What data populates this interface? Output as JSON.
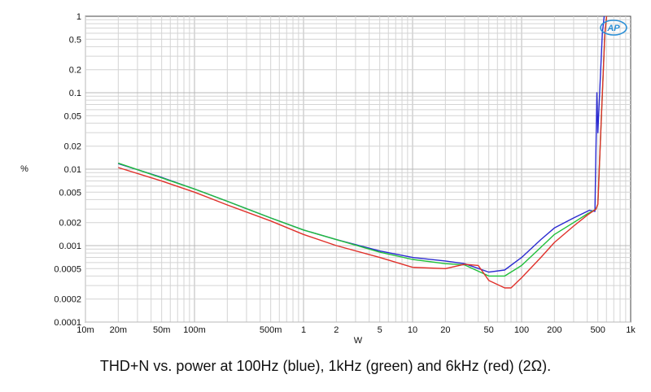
{
  "chart_data": {
    "type": "line",
    "caption": "THD+N vs. power at 100Hz (blue), 1kHz (green) and 6kHz (red) (2Ω).",
    "xlabel": "W",
    "ylabel": "%",
    "x_scale": "log",
    "y_scale": "log",
    "xlim": [
      0.01,
      1000
    ],
    "ylim": [
      0.0001,
      1
    ],
    "grid": true,
    "x_ticks": [
      {
        "value": 0.01,
        "label": "10m"
      },
      {
        "value": 0.02,
        "label": "20m"
      },
      {
        "value": 0.05,
        "label": "50m"
      },
      {
        "value": 0.1,
        "label": "100m"
      },
      {
        "value": 0.5,
        "label": "500m"
      },
      {
        "value": 1,
        "label": "1"
      },
      {
        "value": 2,
        "label": "2"
      },
      {
        "value": 5,
        "label": "5"
      },
      {
        "value": 10,
        "label": "10"
      },
      {
        "value": 20,
        "label": "20"
      },
      {
        "value": 50,
        "label": "50"
      },
      {
        "value": 100,
        "label": "100"
      },
      {
        "value": 200,
        "label": "200"
      },
      {
        "value": 500,
        "label": "500"
      },
      {
        "value": 1000,
        "label": "1k"
      }
    ],
    "y_ticks": [
      {
        "value": 1,
        "label": "1"
      },
      {
        "value": 0.5,
        "label": "0.5"
      },
      {
        "value": 0.2,
        "label": "0.2"
      },
      {
        "value": 0.1,
        "label": "0.1"
      },
      {
        "value": 0.05,
        "label": "0.05"
      },
      {
        "value": 0.02,
        "label": "0.02"
      },
      {
        "value": 0.01,
        "label": "0.01"
      },
      {
        "value": 0.005,
        "label": "0.005"
      },
      {
        "value": 0.002,
        "label": "0.002"
      },
      {
        "value": 0.001,
        "label": "0.001"
      },
      {
        "value": 0.0005,
        "label": "0.0005"
      },
      {
        "value": 0.0002,
        "label": "0.0002"
      },
      {
        "value": 0.0001,
        "label": "0.0001"
      }
    ],
    "logo_text": "AP",
    "series": [
      {
        "color": "#2a2ad0",
        "points": [
          [
            0.02,
            0.0118
          ],
          [
            0.05,
            0.0078
          ],
          [
            0.1,
            0.0055
          ],
          [
            0.2,
            0.0038
          ],
          [
            0.5,
            0.0023
          ],
          [
            1,
            0.0016
          ],
          [
            2,
            0.0012
          ],
          [
            5,
            0.00085
          ],
          [
            10,
            0.0007
          ],
          [
            20,
            0.00063
          ],
          [
            30,
            0.00058
          ],
          [
            50,
            0.00045
          ],
          [
            70,
            0.00048
          ],
          [
            100,
            0.0007
          ],
          [
            150,
            0.0012
          ],
          [
            200,
            0.0017
          ],
          [
            300,
            0.0023
          ],
          [
            420,
            0.0029
          ],
          [
            470,
            0.0028
          ],
          [
            490,
            0.1
          ],
          [
            500,
            0.03
          ],
          [
            550,
            0.6
          ],
          [
            580,
            1.2
          ]
        ]
      },
      {
        "color": "#1fbf3a",
        "points": [
          [
            0.02,
            0.012
          ],
          [
            0.05,
            0.0077
          ],
          [
            0.1,
            0.0055
          ],
          [
            0.2,
            0.0038
          ],
          [
            0.5,
            0.0023
          ],
          [
            1,
            0.0016
          ],
          [
            2,
            0.0012
          ],
          [
            5,
            0.00082
          ],
          [
            10,
            0.00066
          ],
          [
            20,
            0.00058
          ],
          [
            30,
            0.00056
          ],
          [
            50,
            0.0004
          ],
          [
            70,
            0.0004
          ],
          [
            100,
            0.00055
          ],
          [
            150,
            0.00095
          ],
          [
            200,
            0.0014
          ],
          [
            300,
            0.002
          ],
          [
            400,
            0.0026
          ],
          [
            480,
            0.003
          ],
          [
            500,
            0.0035
          ],
          [
            540,
            0.05
          ],
          [
            580,
            0.6
          ],
          [
            610,
            1.2
          ]
        ]
      },
      {
        "color": "#e0302a",
        "points": [
          [
            0.02,
            0.0105
          ],
          [
            0.05,
            0.007
          ],
          [
            0.1,
            0.005
          ],
          [
            0.2,
            0.0034
          ],
          [
            0.5,
            0.0021
          ],
          [
            1,
            0.0014
          ],
          [
            2,
            0.001
          ],
          [
            5,
            0.0007
          ],
          [
            10,
            0.00052
          ],
          [
            20,
            0.0005
          ],
          [
            30,
            0.00057
          ],
          [
            40,
            0.00055
          ],
          [
            50,
            0.00035
          ],
          [
            70,
            0.00028
          ],
          [
            80,
            0.00028
          ],
          [
            100,
            0.00038
          ],
          [
            150,
            0.0007
          ],
          [
            200,
            0.0011
          ],
          [
            300,
            0.0018
          ],
          [
            400,
            0.0025
          ],
          [
            480,
            0.003
          ],
          [
            500,
            0.0035
          ],
          [
            540,
            0.05
          ],
          [
            580,
            0.6
          ],
          [
            610,
            1.2
          ]
        ]
      }
    ]
  }
}
